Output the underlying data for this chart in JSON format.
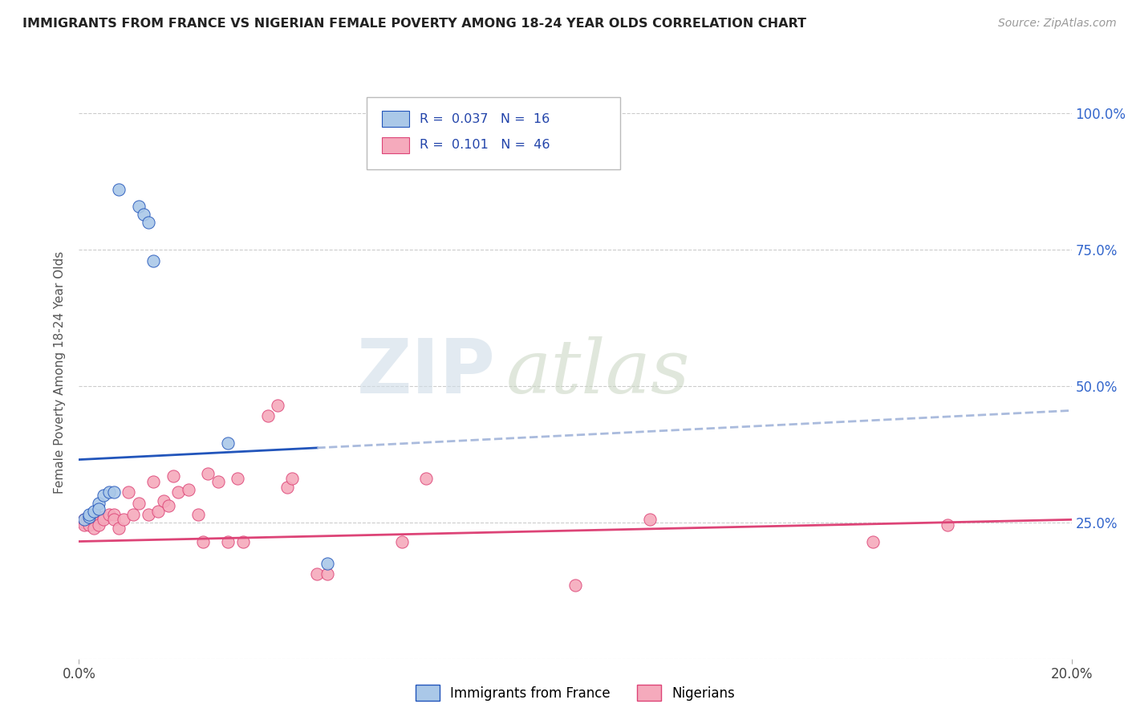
{
  "title": "IMMIGRANTS FROM FRANCE VS NIGERIAN FEMALE POVERTY AMONG 18-24 YEAR OLDS CORRELATION CHART",
  "source": "Source: ZipAtlas.com",
  "ylabel": "Female Poverty Among 18-24 Year Olds",
  "series1_label": "Immigrants from France",
  "series2_label": "Nigerians",
  "series1_color": "#aac8e8",
  "series2_color": "#f5aabc",
  "trendline1_color": "#2255bb",
  "trendline2_color": "#dd4477",
  "watermark_zip": "ZIP",
  "watermark_atlas": "atlas",
  "blue_scatter_x": [
    0.001,
    0.002,
    0.002,
    0.003,
    0.004,
    0.004,
    0.005,
    0.006,
    0.007,
    0.008,
    0.012,
    0.013,
    0.014,
    0.015,
    0.03,
    0.05
  ],
  "blue_scatter_y": [
    0.255,
    0.26,
    0.265,
    0.27,
    0.285,
    0.275,
    0.3,
    0.305,
    0.305,
    0.86,
    0.83,
    0.815,
    0.8,
    0.73,
    0.395,
    0.175
  ],
  "pink_scatter_x": [
    0.001,
    0.001,
    0.001,
    0.002,
    0.002,
    0.003,
    0.003,
    0.004,
    0.004,
    0.005,
    0.005,
    0.006,
    0.007,
    0.007,
    0.008,
    0.009,
    0.01,
    0.011,
    0.012,
    0.014,
    0.015,
    0.016,
    0.017,
    0.018,
    0.019,
    0.02,
    0.022,
    0.024,
    0.025,
    0.026,
    0.028,
    0.03,
    0.032,
    0.033,
    0.038,
    0.04,
    0.042,
    0.043,
    0.048,
    0.05,
    0.065,
    0.07,
    0.1,
    0.115,
    0.16,
    0.175
  ],
  "pink_scatter_y": [
    0.25,
    0.255,
    0.245,
    0.255,
    0.245,
    0.255,
    0.24,
    0.26,
    0.245,
    0.26,
    0.255,
    0.265,
    0.265,
    0.255,
    0.24,
    0.255,
    0.305,
    0.265,
    0.285,
    0.265,
    0.325,
    0.27,
    0.29,
    0.28,
    0.335,
    0.305,
    0.31,
    0.265,
    0.215,
    0.34,
    0.325,
    0.215,
    0.33,
    0.215,
    0.445,
    0.465,
    0.315,
    0.33,
    0.155,
    0.155,
    0.215,
    0.33,
    0.135,
    0.255,
    0.215,
    0.245
  ],
  "trendline1_x": [
    0.0,
    0.048,
    0.2
  ],
  "trendline1_y": [
    0.365,
    0.415,
    0.455
  ],
  "trendline1_solid_end": 0.048,
  "trendline2_x": [
    0.0,
    0.2
  ],
  "trendline2_y": [
    0.215,
    0.255
  ],
  "xlim": [
    0.0,
    0.2
  ],
  "ylim": [
    0.0,
    1.05
  ],
  "y_ticks": [
    0.0,
    0.25,
    0.5,
    0.75,
    1.0
  ],
  "y_tick_labels_right": [
    "",
    "25.0%",
    "50.0%",
    "75.0%",
    "100.0%"
  ],
  "figsize": [
    14.06,
    8.92
  ],
  "dpi": 100
}
